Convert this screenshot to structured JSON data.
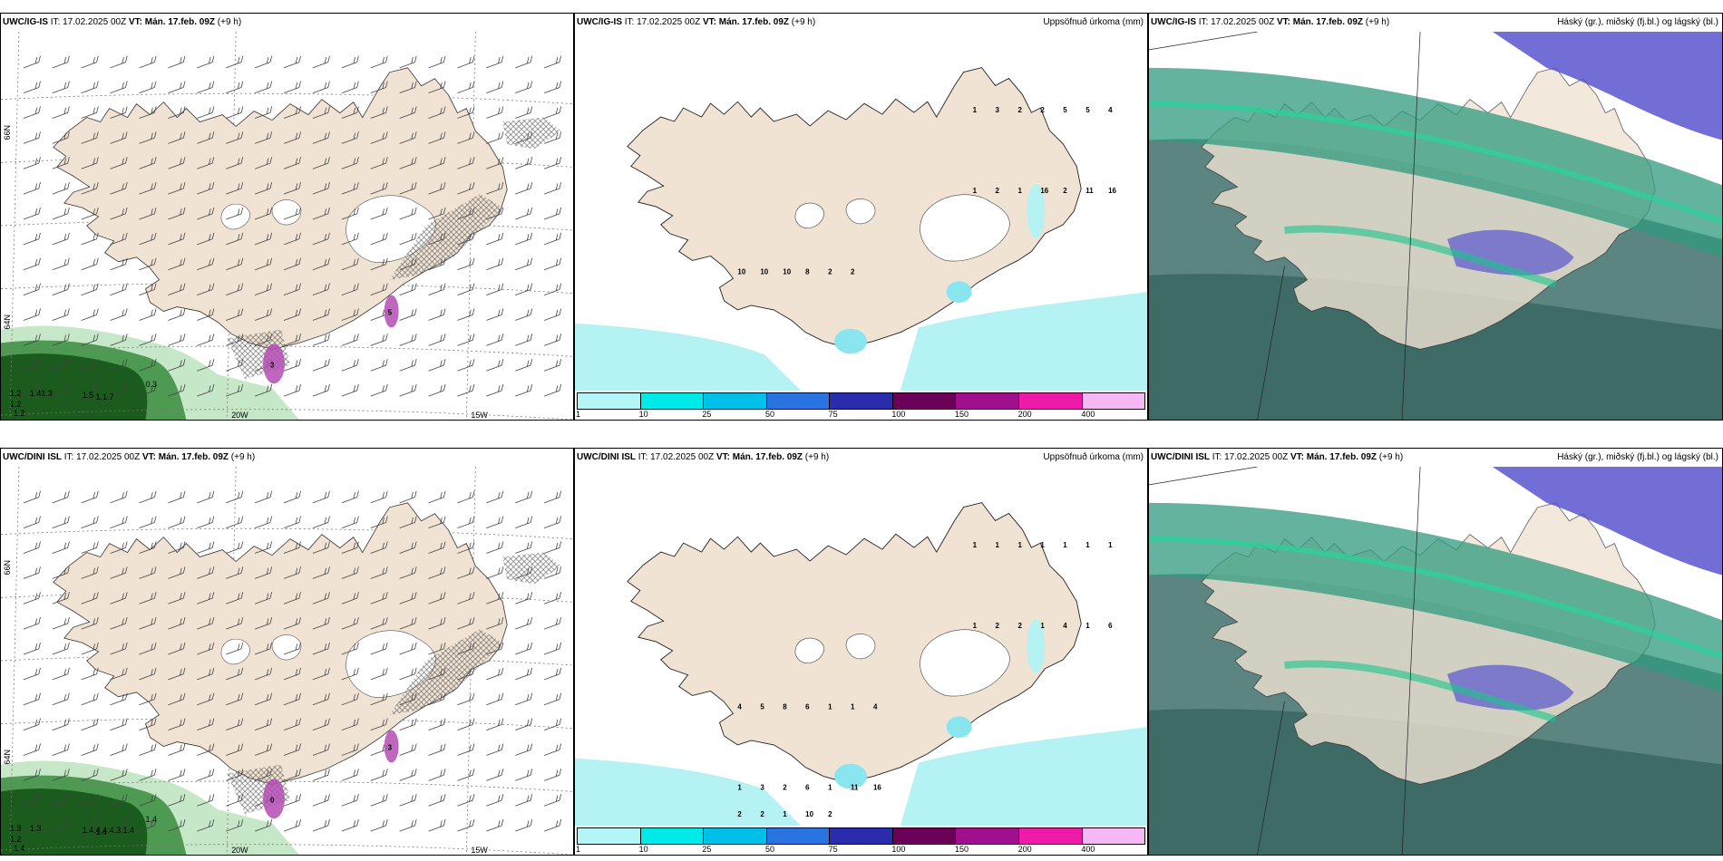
{
  "colors": {
    "land": "#f0e3d3",
    "ice": "#ffffff",
    "precip_light": "#b5f2f4",
    "precip_mid": "#8ae6ee",
    "fog_dark": "#1b5b1e",
    "fog_mid": "#4e9a52",
    "fog_light": "#c6e8c8",
    "icing": "#b44cb4",
    "cloud_high": "#2f9a7e",
    "cloud_mid": "#5a55cf",
    "cloud_low": "#3f6f6a"
  },
  "rows": [
    {
      "model": "UWC/IG-IS",
      "init_label": "IT:",
      "init": "17.02.2025 00Z",
      "valid_label": "VT:",
      "valid": "Mán. 17.feb. 09Z",
      "lead": "(+9 h)",
      "wind_panel": {
        "lat_labels": [
          "66N",
          "64N"
        ],
        "lon_labels": [
          "20W",
          "15W"
        ],
        "fog_values": [
          "1.2",
          "1.41.3",
          "1.5",
          "1.1.7",
          "0.3",
          "1.2",
          "1.2"
        ],
        "icing_values": [
          "3",
          "5"
        ]
      },
      "precip_panel": {
        "title": "Uppsöfnuð úrkoma (mm)",
        "values": [
          "1",
          "3",
          "2",
          "2",
          "5",
          "5",
          "4",
          "1",
          "2",
          "1",
          "16",
          "2",
          "11",
          "16",
          "10",
          "10",
          "10",
          "8",
          "2",
          "2"
        ],
        "colorbar_ticks": [
          "1",
          "10",
          "25",
          "50",
          "75",
          "100",
          "150",
          "200",
          "400"
        ],
        "colorbar_colors": [
          "#b4f5f7",
          "#00e9e9",
          "#00bfe8",
          "#2a73e3",
          "#2b2bae",
          "#6b0057",
          "#a0108e",
          "#ee1aa8",
          "#f5b8f2"
        ]
      },
      "cloud_panel": {
        "title": "Háský (gr.), miðský (fj.bl.) og lágský (bl.)"
      }
    },
    {
      "model": "UWC/DINI ISL",
      "init_label": "IT:",
      "init": "17.02.2025 00Z",
      "valid_label": "VT:",
      "valid": "Mán. 17.feb. 09Z",
      "lead": "(+9 h)",
      "wind_panel": {
        "lat_labels": [
          "66N",
          "64N"
        ],
        "lon_labels": [
          "20W",
          "15W"
        ],
        "fog_values": [
          "1.3",
          "1.3",
          "1.4.4.4.4.3.1.4",
          "1.4",
          "1.4",
          "1.2",
          "1.4"
        ],
        "icing_values": [
          "0",
          "3"
        ]
      },
      "precip_panel": {
        "title": "Uppsöfnuð úrkoma (mm)",
        "values": [
          "1",
          "1",
          "1",
          "1",
          "1",
          "1",
          "1",
          "1",
          "2",
          "2",
          "1",
          "4",
          "1",
          "6",
          "4",
          "5",
          "8",
          "6",
          "1",
          "1",
          "4",
          "1",
          "3",
          "2",
          "6",
          "1",
          "11",
          "16",
          "2",
          "2",
          "1",
          "10",
          "2"
        ],
        "colorbar_ticks": [
          "1",
          "10",
          "25",
          "50",
          "75",
          "100",
          "150",
          "200",
          "400"
        ],
        "colorbar_colors": [
          "#b4f5f7",
          "#00e9e9",
          "#00bfe8",
          "#2a73e3",
          "#2b2bae",
          "#6b0057",
          "#a0108e",
          "#ee1aa8",
          "#f5b8f2"
        ]
      },
      "cloud_panel": {
        "title": "Háský (gr.), miðský (fj.bl.) og lágský (bl.)"
      }
    }
  ]
}
